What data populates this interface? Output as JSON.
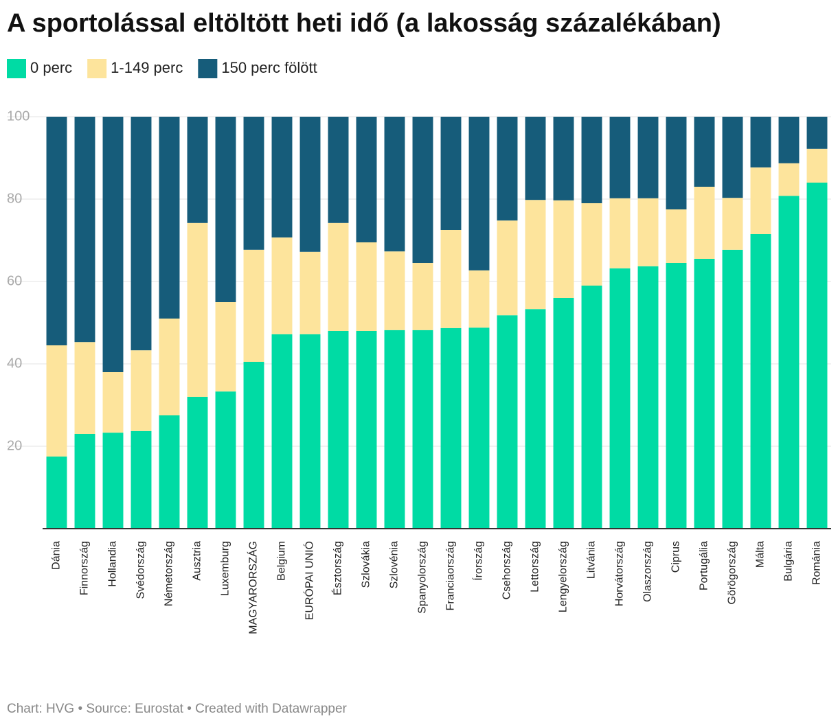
{
  "chart_data": {
    "type": "stacked_bar",
    "title": "A sportolással eltöltött heti idő (a lakosság százalékában)",
    "footer": "Chart: HVG • Source: Eurostat • Created with Datawrapper",
    "categories": [
      "Dánia",
      "Finnország",
      "Hollandia",
      "Svédország",
      "Németország",
      "Ausztria",
      "Luxemburg",
      "MAGYARORSZÁG",
      "Belgium",
      "EURÓPAI UNIÓ",
      "Észtország",
      "Szlovákia",
      "Szlovénia",
      "Spanyolország",
      "Franciaország",
      "Írország",
      "Csehország",
      "Lettország",
      "Lengyelország",
      "Litvánia",
      "Horvátország",
      "Olaszország",
      "Ciprus",
      "Portugália",
      "Görögország",
      "Málta",
      "Bulgária",
      "Románia"
    ],
    "series": [
      {
        "name": "0 perc",
        "color": "#00dba4",
        "values": [
          17.5,
          23.0,
          23.3,
          23.7,
          27.5,
          32.0,
          33.3,
          40.5,
          47.2,
          47.2,
          48.0,
          48.0,
          48.2,
          48.2,
          48.7,
          48.8,
          51.8,
          53.3,
          56.0,
          59.0,
          63.2,
          63.7,
          64.5,
          65.5,
          67.7,
          71.5,
          80.8,
          84.0
        ]
      },
      {
        "name": "1-149 perc",
        "color": "#fde49c",
        "values": [
          27.0,
          22.3,
          14.7,
          19.6,
          23.5,
          42.2,
          21.7,
          27.2,
          23.5,
          20.0,
          26.2,
          21.5,
          19.1,
          16.3,
          23.8,
          13.9,
          23.0,
          26.5,
          23.7,
          20.0,
          17.0,
          16.5,
          13.0,
          17.5,
          12.6,
          16.2,
          7.9,
          8.2
        ]
      },
      {
        "name": "150 perc fölött",
        "color": "#165c7a",
        "values": [
          55.5,
          54.7,
          62.0,
          56.7,
          49.0,
          25.8,
          45.0,
          32.3,
          29.3,
          32.8,
          25.8,
          30.5,
          32.7,
          35.5,
          27.5,
          37.3,
          25.2,
          20.2,
          20.3,
          21.0,
          19.8,
          19.8,
          22.5,
          17.0,
          19.7,
          12.3,
          11.3,
          7.8
        ]
      }
    ],
    "ylim": [
      0,
      100
    ],
    "yticks": [
      20,
      40,
      60,
      80,
      100
    ],
    "grid": true
  }
}
